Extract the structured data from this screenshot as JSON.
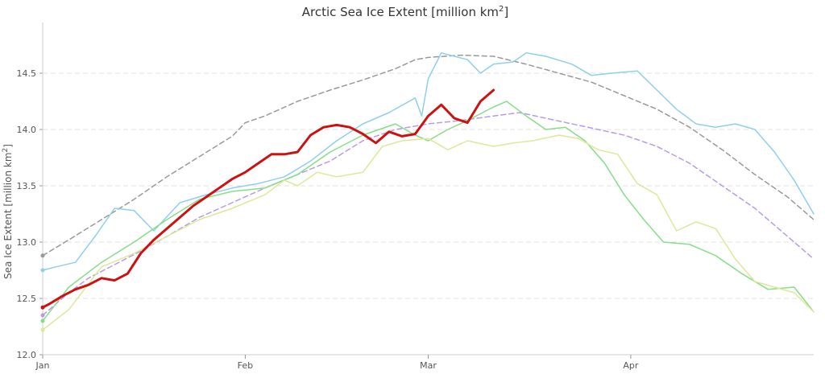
{
  "chart_data": {
    "type": "line",
    "title": "Arctic Sea Ice Extent [million km",
    "title_sup": "2",
    "title_end": "]",
    "ylabel": "Sea Ice Extent [million km",
    "ylabel_sup": "2",
    "ylabel_end": "]",
    "xlabel": "",
    "x_unit": "day of year",
    "xlim": [
      1,
      119
    ],
    "ylim": [
      12.0,
      14.95
    ],
    "y_ticks": [
      {
        "value": 12.0,
        "label": "12.0"
      },
      {
        "value": 12.5,
        "label": "12.5"
      },
      {
        "value": 13.0,
        "label": "13.0"
      },
      {
        "value": 13.5,
        "label": "13.5"
      },
      {
        "value": 14.0,
        "label": "14.0"
      },
      {
        "value": 14.5,
        "label": "14.5"
      }
    ],
    "x_ticks": [
      {
        "value": 1,
        "label": "Jan"
      },
      {
        "value": 32,
        "label": "Feb"
      },
      {
        "value": 60,
        "label": "Mar"
      },
      {
        "value": 91,
        "label": "Apr"
      }
    ],
    "grid": "horizontal dashed",
    "legend": "none",
    "series": [
      {
        "color": "#999999",
        "dash": true,
        "width": 1.5,
        "points": [
          [
            1,
            12.88
          ],
          [
            5,
            13.02
          ],
          [
            10,
            13.2
          ],
          [
            15,
            13.38
          ],
          [
            20,
            13.58
          ],
          [
            25,
            13.76
          ],
          [
            30,
            13.94
          ],
          [
            32,
            14.06
          ],
          [
            35,
            14.12
          ],
          [
            40,
            14.25
          ],
          [
            45,
            14.35
          ],
          [
            50,
            14.44
          ],
          [
            55,
            14.54
          ],
          [
            58,
            14.62
          ],
          [
            60,
            14.64
          ],
          [
            65,
            14.66
          ],
          [
            70,
            14.65
          ],
          [
            75,
            14.58
          ],
          [
            80,
            14.5
          ],
          [
            85,
            14.42
          ],
          [
            90,
            14.3
          ],
          [
            95,
            14.18
          ],
          [
            100,
            14.02
          ],
          [
            105,
            13.82
          ],
          [
            110,
            13.6
          ],
          [
            115,
            13.4
          ],
          [
            119,
            13.2
          ]
        ]
      },
      {
        "color": "#b99ae6",
        "dash": true,
        "width": 1.5,
        "points": [
          [
            1,
            12.35
          ],
          [
            5,
            12.55
          ],
          [
            8,
            12.68
          ],
          [
            12,
            12.8
          ],
          [
            16,
            12.92
          ],
          [
            20,
            13.05
          ],
          [
            25,
            13.22
          ],
          [
            30,
            13.35
          ],
          [
            35,
            13.48
          ],
          [
            40,
            13.6
          ],
          [
            45,
            13.72
          ],
          [
            50,
            13.9
          ],
          [
            55,
            14.0
          ],
          [
            60,
            14.05
          ],
          [
            65,
            14.08
          ],
          [
            70,
            14.12
          ],
          [
            74,
            14.15
          ],
          [
            78,
            14.1
          ],
          [
            82,
            14.05
          ],
          [
            86,
            14.0
          ],
          [
            90,
            13.95
          ],
          [
            95,
            13.85
          ],
          [
            100,
            13.7
          ],
          [
            105,
            13.5
          ],
          [
            110,
            13.3
          ],
          [
            115,
            13.05
          ],
          [
            119,
            12.85
          ]
        ]
      },
      {
        "color": "#8ecfec",
        "dash": false,
        "width": 1.5,
        "points": [
          [
            1,
            12.75
          ],
          [
            3,
            12.78
          ],
          [
            6,
            12.82
          ],
          [
            9,
            13.05
          ],
          [
            12,
            13.3
          ],
          [
            15,
            13.28
          ],
          [
            18,
            13.1
          ],
          [
            22,
            13.35
          ],
          [
            26,
            13.42
          ],
          [
            30,
            13.48
          ],
          [
            34,
            13.52
          ],
          [
            38,
            13.58
          ],
          [
            42,
            13.72
          ],
          [
            46,
            13.9
          ],
          [
            50,
            14.05
          ],
          [
            54,
            14.15
          ],
          [
            58,
            14.28
          ],
          [
            59,
            14.12
          ],
          [
            60,
            14.45
          ],
          [
            62,
            14.68
          ],
          [
            64,
            14.65
          ],
          [
            66,
            14.62
          ],
          [
            68,
            14.5
          ],
          [
            70,
            14.58
          ],
          [
            73,
            14.6
          ],
          [
            75,
            14.68
          ],
          [
            78,
            14.65
          ],
          [
            82,
            14.58
          ],
          [
            85,
            14.48
          ],
          [
            88,
            14.5
          ],
          [
            92,
            14.52
          ],
          [
            95,
            14.35
          ],
          [
            98,
            14.18
          ],
          [
            101,
            14.05
          ],
          [
            104,
            14.02
          ],
          [
            107,
            14.05
          ],
          [
            110,
            14.0
          ],
          [
            113,
            13.8
          ],
          [
            116,
            13.55
          ],
          [
            119,
            13.25
          ]
        ]
      },
      {
        "color": "#88dd88",
        "dash": false,
        "width": 1.5,
        "points": [
          [
            1,
            12.3
          ],
          [
            5,
            12.6
          ],
          [
            10,
            12.82
          ],
          [
            15,
            13.0
          ],
          [
            20,
            13.2
          ],
          [
            25,
            13.38
          ],
          [
            30,
            13.45
          ],
          [
            35,
            13.48
          ],
          [
            40,
            13.6
          ],
          [
            45,
            13.8
          ],
          [
            50,
            13.95
          ],
          [
            55,
            14.05
          ],
          [
            58,
            13.95
          ],
          [
            60,
            13.9
          ],
          [
            63,
            14.0
          ],
          [
            66,
            14.08
          ],
          [
            70,
            14.2
          ],
          [
            72,
            14.25
          ],
          [
            75,
            14.12
          ],
          [
            78,
            14.0
          ],
          [
            81,
            14.02
          ],
          [
            84,
            13.9
          ],
          [
            87,
            13.7
          ],
          [
            90,
            13.42
          ],
          [
            93,
            13.2
          ],
          [
            96,
            13.0
          ],
          [
            100,
            12.98
          ],
          [
            104,
            12.88
          ],
          [
            108,
            12.72
          ],
          [
            112,
            12.58
          ],
          [
            116,
            12.6
          ],
          [
            119,
            12.38
          ]
        ]
      },
      {
        "color": "#dde89a",
        "dash": false,
        "width": 1.5,
        "points": [
          [
            1,
            12.22
          ],
          [
            5,
            12.4
          ],
          [
            10,
            12.78
          ],
          [
            15,
            12.9
          ],
          [
            20,
            13.05
          ],
          [
            25,
            13.2
          ],
          [
            30,
            13.3
          ],
          [
            35,
            13.42
          ],
          [
            38,
            13.55
          ],
          [
            40,
            13.5
          ],
          [
            43,
            13.62
          ],
          [
            46,
            13.58
          ],
          [
            50,
            13.62
          ],
          [
            53,
            13.85
          ],
          [
            56,
            13.9
          ],
          [
            60,
            13.92
          ],
          [
            63,
            13.82
          ],
          [
            66,
            13.9
          ],
          [
            70,
            13.85
          ],
          [
            73,
            13.88
          ],
          [
            76,
            13.9
          ],
          [
            80,
            13.95
          ],
          [
            83,
            13.92
          ],
          [
            86,
            13.82
          ],
          [
            89,
            13.78
          ],
          [
            92,
            13.52
          ],
          [
            95,
            13.42
          ],
          [
            98,
            13.1
          ],
          [
            101,
            13.18
          ],
          [
            104,
            13.12
          ],
          [
            107,
            12.85
          ],
          [
            110,
            12.65
          ],
          [
            113,
            12.6
          ],
          [
            116,
            12.55
          ],
          [
            119,
            12.38
          ]
        ]
      },
      {
        "color": "#cc1111",
        "dash": false,
        "width": 3,
        "points": [
          [
            1,
            12.42
          ],
          [
            2,
            12.45
          ],
          [
            4,
            12.52
          ],
          [
            6,
            12.58
          ],
          [
            8,
            12.62
          ],
          [
            10,
            12.68
          ],
          [
            12,
            12.66
          ],
          [
            14,
            12.72
          ],
          [
            16,
            12.9
          ],
          [
            18,
            13.02
          ],
          [
            20,
            13.12
          ],
          [
            22,
            13.22
          ],
          [
            24,
            13.32
          ],
          [
            26,
            13.4
          ],
          [
            28,
            13.48
          ],
          [
            30,
            13.56
          ],
          [
            32,
            13.62
          ],
          [
            34,
            13.7
          ],
          [
            36,
            13.78
          ],
          [
            38,
            13.78
          ],
          [
            40,
            13.8
          ],
          [
            42,
            13.95
          ],
          [
            44,
            14.02
          ],
          [
            46,
            14.04
          ],
          [
            48,
            14.02
          ],
          [
            50,
            13.96
          ],
          [
            52,
            13.88
          ],
          [
            54,
            13.98
          ],
          [
            56,
            13.94
          ],
          [
            58,
            13.96
          ],
          [
            60,
            14.12
          ],
          [
            62,
            14.22
          ],
          [
            64,
            14.1
          ],
          [
            66,
            14.06
          ],
          [
            68,
            14.25
          ],
          [
            70,
            14.35
          ]
        ]
      }
    ]
  }
}
